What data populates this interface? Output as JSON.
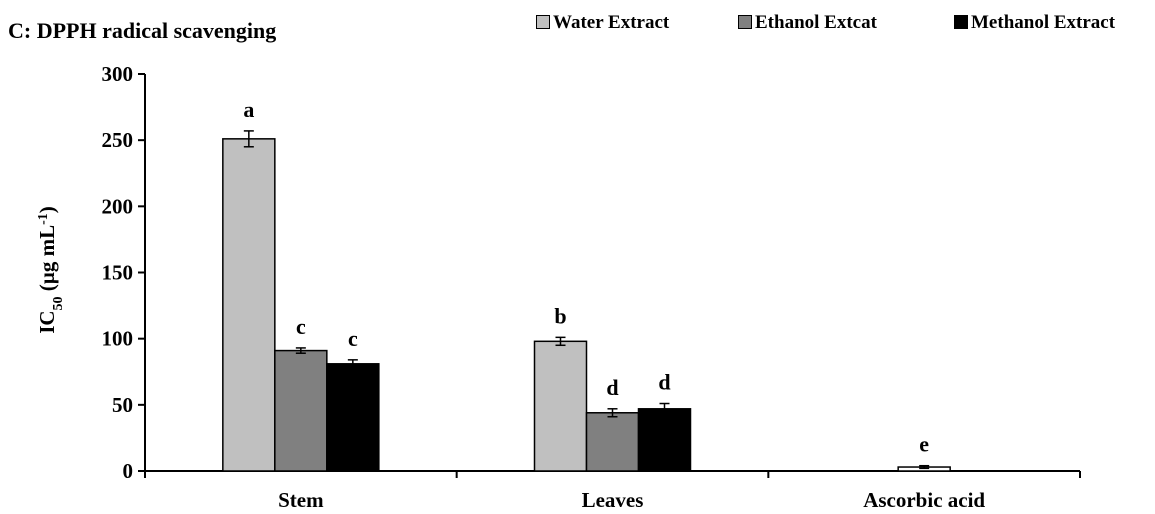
{
  "chart_data": {
    "type": "bar",
    "title": "C: DPPH radical scavenging",
    "ylabel": {
      "main": "IC",
      "sub": "50",
      "unit_pre": " (µg mL",
      "unit_sup": "-1",
      "unit_post": ")"
    },
    "xlabel": "",
    "categories": [
      "Stem",
      "Leaves",
      "Ascorbic acid"
    ],
    "ylim": [
      0,
      300
    ],
    "yticks": [
      0,
      50,
      100,
      150,
      200,
      250,
      300
    ],
    "grid": false,
    "legend_position": "top-right",
    "series": [
      {
        "name": "Water Extract",
        "color": "#c0c0c0",
        "values": [
          251,
          98,
          null
        ],
        "errors": [
          6,
          3,
          null
        ],
        "letters": [
          "a",
          "b",
          null
        ]
      },
      {
        "name": "Ethanol Extcat",
        "color": "#808080",
        "values": [
          91,
          44,
          3
        ],
        "errors": [
          2,
          3,
          1
        ],
        "letters": [
          "c",
          "d",
          "e"
        ]
      },
      {
        "name": "Methanol Extract",
        "color": "#000000",
        "values": [
          81,
          47,
          null
        ],
        "errors": [
          3,
          4,
          null
        ],
        "letters": [
          "c",
          "d",
          null
        ]
      }
    ]
  }
}
